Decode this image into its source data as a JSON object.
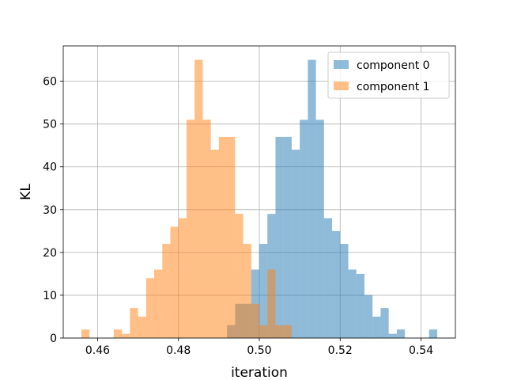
{
  "chart_data": {
    "type": "histogram",
    "title": "",
    "xlabel": "iteration",
    "ylabel": "KL",
    "xlim": [
      0.4515,
      0.5485
    ],
    "ylim": [
      0,
      68.25
    ],
    "xticks": [
      0.46,
      0.48,
      0.5,
      0.52,
      0.54
    ],
    "xtick_labels": [
      "0.46",
      "0.48",
      "0.50",
      "0.52",
      "0.54"
    ],
    "yticks": [
      0,
      10,
      20,
      30,
      40,
      50,
      60
    ],
    "ytick_labels": [
      "0",
      "10",
      "20",
      "30",
      "40",
      "50",
      "60"
    ],
    "grid": true,
    "legend_position": "top-right",
    "series": [
      {
        "name": "component 0",
        "color": "#1f77b4",
        "alpha": 0.5,
        "bin_width": 0.002,
        "bins": [
          [
            0.492,
            3
          ],
          [
            0.494,
            8
          ],
          [
            0.496,
            8
          ],
          [
            0.498,
            16
          ],
          [
            0.5,
            22
          ],
          [
            0.502,
            29
          ],
          [
            0.504,
            47
          ],
          [
            0.506,
            47
          ],
          [
            0.508,
            44
          ],
          [
            0.51,
            51
          ],
          [
            0.512,
            65
          ],
          [
            0.514,
            51
          ],
          [
            0.516,
            28
          ],
          [
            0.518,
            25
          ],
          [
            0.52,
            22
          ],
          [
            0.522,
            16
          ],
          [
            0.524,
            15
          ],
          [
            0.526,
            10
          ],
          [
            0.528,
            5
          ],
          [
            0.53,
            7
          ],
          [
            0.532,
            1
          ],
          [
            0.534,
            2
          ],
          [
            0.542,
            2
          ]
        ]
      },
      {
        "name": "component 1",
        "color": "#ff7f0e",
        "alpha": 0.5,
        "bin_width": 0.002,
        "bins": [
          [
            0.456,
            2
          ],
          [
            0.464,
            2
          ],
          [
            0.466,
            1
          ],
          [
            0.468,
            7
          ],
          [
            0.47,
            5
          ],
          [
            0.472,
            14
          ],
          [
            0.474,
            16
          ],
          [
            0.476,
            22
          ],
          [
            0.478,
            26
          ],
          [
            0.48,
            28
          ],
          [
            0.482,
            51
          ],
          [
            0.484,
            65
          ],
          [
            0.486,
            51
          ],
          [
            0.488,
            44
          ],
          [
            0.49,
            47
          ],
          [
            0.492,
            47
          ],
          [
            0.494,
            29
          ],
          [
            0.496,
            22
          ],
          [
            0.498,
            8
          ],
          [
            0.5,
            3
          ],
          [
            0.502,
            16
          ],
          [
            0.504,
            3
          ],
          [
            0.506,
            3
          ]
        ]
      }
    ]
  }
}
